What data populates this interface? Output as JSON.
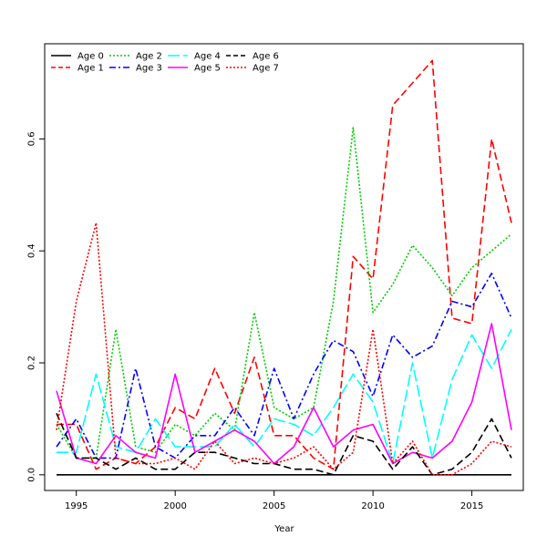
{
  "chart_data": {
    "type": "line",
    "xlabel": "Year",
    "ylabel": "",
    "xlim": [
      1993.4,
      2017.6
    ],
    "ylim": [
      -0.028,
      0.77
    ],
    "grid": false,
    "legend_position": "top-left",
    "x_ticks": [
      1995,
      2000,
      2005,
      2010,
      2015
    ],
    "y_ticks": [
      0.0,
      0.2,
      0.4,
      0.6
    ],
    "x_tick_labels": [
      "1995",
      "2000",
      "2005",
      "2010",
      "2015"
    ],
    "y_tick_labels": [
      "0.0",
      "0.2",
      "0.4",
      "0.6"
    ],
    "x": [
      1994,
      1995,
      1996,
      1997,
      1998,
      1999,
      2000,
      2001,
      2002,
      2003,
      2004,
      2005,
      2006,
      2007,
      2008,
      2009,
      2010,
      2011,
      2012,
      2013,
      2014,
      2015,
      2016,
      2017
    ],
    "series": [
      {
        "name": "Age 0",
        "color": "#000000",
        "dash": "solid",
        "values": [
          0,
          0,
          0,
          0,
          0,
          0,
          0,
          0,
          0,
          0,
          0,
          0,
          0,
          0,
          0,
          0,
          0,
          0,
          0,
          0,
          0,
          0,
          0,
          0
        ]
      },
      {
        "name": "Age 1",
        "color": "#ff0000",
        "dash": "dashed",
        "values": [
          0.09,
          0.09,
          0.01,
          0.03,
          0.02,
          0.05,
          0.12,
          0.1,
          0.19,
          0.11,
          0.21,
          0.07,
          0.07,
          0.03,
          0.01,
          0.39,
          0.35,
          0.66,
          0.7,
          0.74,
          0.28,
          0.27,
          0.6,
          0.45
        ]
      },
      {
        "name": "Age 2",
        "color": "#00cd00",
        "dash": "dotted",
        "values": [
          0.09,
          0.03,
          0.03,
          0.26,
          0.05,
          0.04,
          0.09,
          0.07,
          0.11,
          0.08,
          0.29,
          0.12,
          0.1,
          0.12,
          0.31,
          0.62,
          0.29,
          0.34,
          0.41,
          0.37,
          0.32,
          0.37,
          0.4,
          0.43
        ]
      },
      {
        "name": "Age 3",
        "color": "#0000ff",
        "dash": "dashdot",
        "values": [
          0.05,
          0.1,
          0.03,
          0.03,
          0.19,
          0.05,
          0.03,
          0.07,
          0.07,
          0.12,
          0.07,
          0.19,
          0.1,
          0.18,
          0.24,
          0.22,
          0.14,
          0.25,
          0.21,
          0.23,
          0.31,
          0.3,
          0.36,
          0.28
        ]
      },
      {
        "name": "Age 4",
        "color": "#00ffff",
        "dash": "longdash",
        "values": [
          0.04,
          0.04,
          0.18,
          0.05,
          0.04,
          0.1,
          0.05,
          0.05,
          0.05,
          0.09,
          0.05,
          0.1,
          0.09,
          0.07,
          0.12,
          0.18,
          0.13,
          0.02,
          0.2,
          0.03,
          0.17,
          0.25,
          0.19,
          0.26
        ]
      },
      {
        "name": "Age 5",
        "color": "#ff00ff",
        "dash": "solid",
        "values": [
          0.15,
          0.03,
          0.02,
          0.07,
          0.04,
          0.03,
          0.18,
          0.04,
          0.06,
          0.08,
          0.06,
          0.02,
          0.05,
          0.12,
          0.05,
          0.08,
          0.09,
          0.02,
          0.04,
          0.03,
          0.06,
          0.13,
          0.27,
          0.08
        ]
      },
      {
        "name": "Age 6",
        "color": "#000000",
        "dash": "dashed",
        "values": [
          0.11,
          0.03,
          0.03,
          0.01,
          0.03,
          0.01,
          0.01,
          0.04,
          0.04,
          0.03,
          0.02,
          0.02,
          0.01,
          0.01,
          0.0,
          0.07,
          0.06,
          0.01,
          0.05,
          0.0,
          0.01,
          0.04,
          0.1,
          0.03
        ]
      },
      {
        "name": "Age 7",
        "color": "#ff0000",
        "dash": "dotted",
        "values": [
          0.08,
          0.31,
          0.45,
          0.03,
          0.02,
          0.02,
          0.03,
          0.01,
          0.06,
          0.02,
          0.03,
          0.02,
          0.03,
          0.05,
          0.01,
          0.04,
          0.26,
          0.02,
          0.06,
          0.0,
          0.0,
          0.02,
          0.06,
          0.05
        ]
      }
    ]
  }
}
